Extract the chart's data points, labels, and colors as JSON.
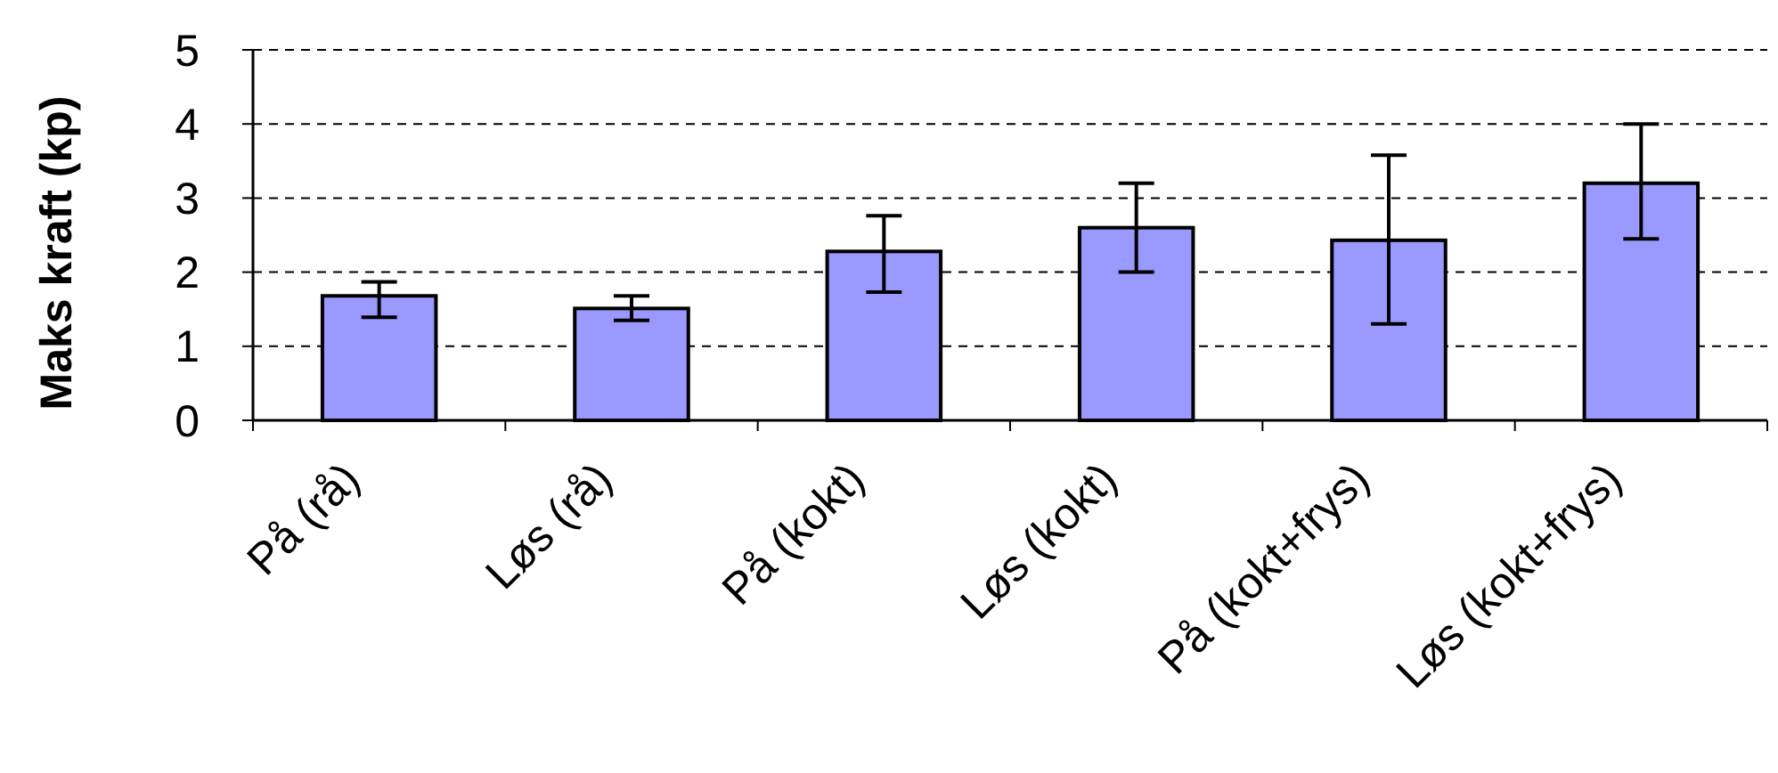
{
  "chart_data": {
    "type": "bar",
    "ylabel": "Maks kraft (kp)",
    "categories": [
      "På (rå)",
      "Løs (rå)",
      "På (kokt)",
      "Løs (kokt)",
      "På (kokt+frys)",
      "Løs (kokt+frys)"
    ],
    "values": [
      1.68,
      1.51,
      2.28,
      2.6,
      2.43,
      3.2
    ],
    "errors": [
      [
        1.39,
        1.87
      ],
      [
        1.35,
        1.68
      ],
      [
        1.73,
        2.76
      ],
      [
        2.0,
        3.2
      ],
      [
        1.3,
        3.58
      ],
      [
        2.45,
        4.0
      ]
    ],
    "color": "#9999ff",
    "ylim": [
      0,
      5
    ],
    "yticks": [
      0,
      1,
      2,
      3,
      4,
      5
    ],
    "grid": "y"
  }
}
